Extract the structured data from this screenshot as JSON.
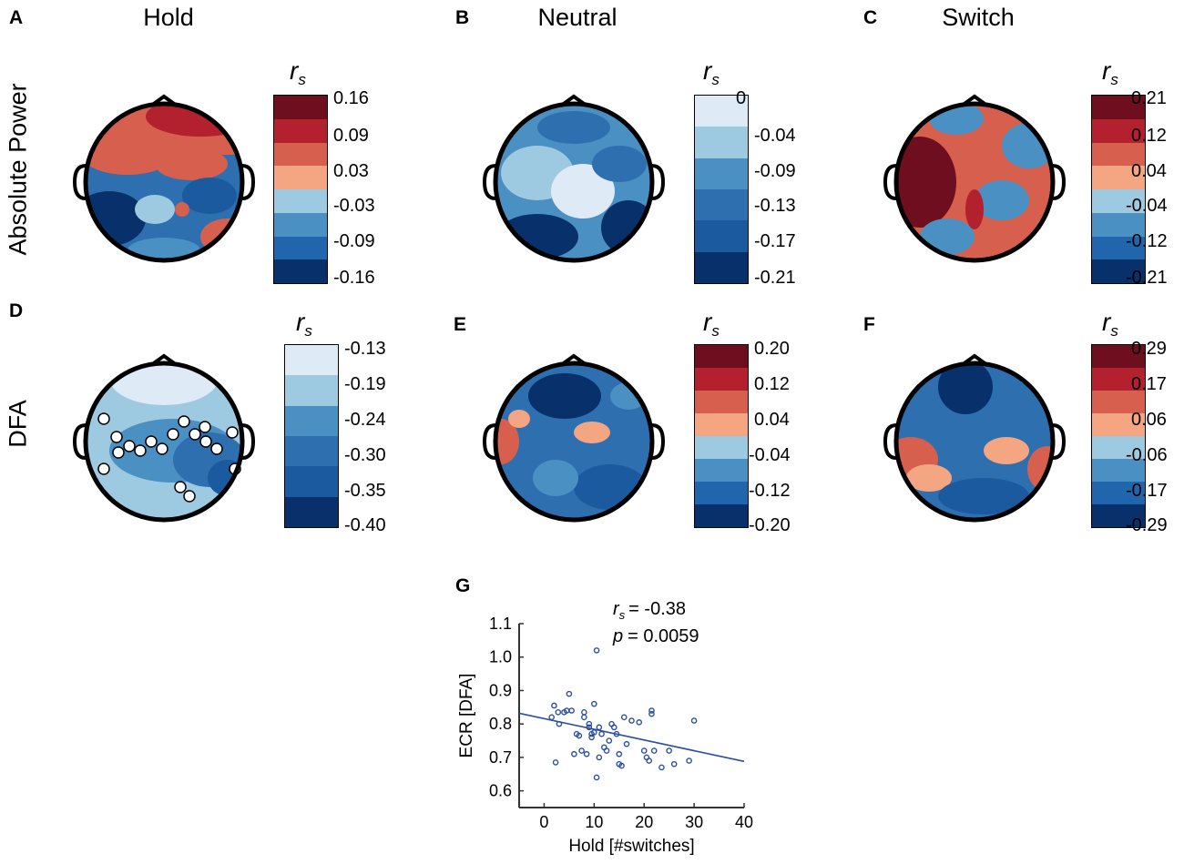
{
  "panel_letters": [
    "A",
    "B",
    "C",
    "D",
    "E",
    "F",
    "G"
  ],
  "column_titles": [
    "Hold",
    "Neutral",
    "Switch"
  ],
  "row_titles": [
    "Absolute Power",
    "DFA"
  ],
  "colorbar_symbol": {
    "main": "r",
    "sub": "s"
  },
  "colors": {
    "diverging": [
      "#6e0e1f",
      "#b3202e",
      "#d6604d",
      "#f4a582",
      "#9ecae1",
      "#4a90c2",
      "#2166ac",
      "#08306b"
    ],
    "blues6": [
      "#deebf7",
      "#9ecae1",
      "#4a90c2",
      "#2e6fb0",
      "#1c5aa0",
      "#08306b"
    ],
    "scatter": "#2c4ea0"
  },
  "colorbars": [
    {
      "panel": "A",
      "ticks": [
        "0.16",
        "0.09",
        "0.03",
        "-0.03",
        "-0.09",
        "-0.16"
      ]
    },
    {
      "panel": "B",
      "ticks": [
        "0",
        "-0.04",
        "-0.09",
        "-0.13",
        "-0.17",
        "-0.21"
      ]
    },
    {
      "panel": "C",
      "ticks": [
        "0.21",
        "0.12",
        "0.04",
        "-0.04",
        "-0.12",
        "-0.21"
      ]
    },
    {
      "panel": "D",
      "ticks": [
        "-0.13",
        "-0.19",
        "-0.24",
        "-0.30",
        "-0.35",
        "-0.40"
      ]
    },
    {
      "panel": "E",
      "ticks": [
        "0.20",
        "0.12",
        "0.04",
        "-0.04",
        "-0.12",
        "-0.20"
      ]
    },
    {
      "panel": "F",
      "ticks": [
        "0.29",
        "0.17",
        "0.06",
        "-0.06",
        "-0.17",
        "-0.29"
      ]
    }
  ],
  "chart_data": {
    "type": "scatter",
    "panel": "G",
    "xlabel": "Hold [#switches]",
    "ylabel": "ECR [DFA]",
    "xlim": [
      -5,
      40
    ],
    "ylim": [
      0.55,
      1.1
    ],
    "xticks": [
      0,
      10,
      20,
      30,
      40
    ],
    "yticks": [
      0.6,
      0.7,
      0.8,
      0.9,
      1.0,
      1.1
    ],
    "xtick_labels": [
      "0",
      "10",
      "20",
      "30",
      "40"
    ],
    "ytick_labels": [
      "0.6",
      "0.7",
      "0.8",
      "0.9",
      "1.0",
      "1.1"
    ],
    "annotation": {
      "rs_label": "r",
      "rs_sub": "s",
      "rs_value": "= -0.38",
      "p_label": "p",
      "p_value": "= 0.0059"
    },
    "fit_line": {
      "x": [
        -5,
        40
      ],
      "y": [
        0.832,
        0.688
      ]
    },
    "points": [
      {
        "x": 1.5,
        "y": 0.82
      },
      {
        "x": 2,
        "y": 0.855
      },
      {
        "x": 2.3,
        "y": 0.685
      },
      {
        "x": 2.8,
        "y": 0.835
      },
      {
        "x": 3,
        "y": 0.8
      },
      {
        "x": 4,
        "y": 0.835
      },
      {
        "x": 4.5,
        "y": 0.84
      },
      {
        "x": 5,
        "y": 0.89
      },
      {
        "x": 5.5,
        "y": 0.84
      },
      {
        "x": 6,
        "y": 0.71
      },
      {
        "x": 6.5,
        "y": 0.77
      },
      {
        "x": 7,
        "y": 0.765
      },
      {
        "x": 7.5,
        "y": 0.72
      },
      {
        "x": 8,
        "y": 0.835
      },
      {
        "x": 8,
        "y": 0.82
      },
      {
        "x": 8.5,
        "y": 0.71
      },
      {
        "x": 9,
        "y": 0.8
      },
      {
        "x": 9,
        "y": 0.79
      },
      {
        "x": 9.5,
        "y": 0.77
      },
      {
        "x": 9.5,
        "y": 0.76
      },
      {
        "x": 10,
        "y": 0.775
      },
      {
        "x": 10,
        "y": 0.86
      },
      {
        "x": 10.5,
        "y": 1.02
      },
      {
        "x": 10.5,
        "y": 0.64
      },
      {
        "x": 11,
        "y": 0.79
      },
      {
        "x": 11,
        "y": 0.7
      },
      {
        "x": 11.5,
        "y": 0.77
      },
      {
        "x": 12,
        "y": 0.73
      },
      {
        "x": 12.5,
        "y": 0.72
      },
      {
        "x": 13,
        "y": 0.75
      },
      {
        "x": 13.5,
        "y": 0.8
      },
      {
        "x": 14,
        "y": 0.79
      },
      {
        "x": 14.5,
        "y": 0.77
      },
      {
        "x": 15,
        "y": 0.71
      },
      {
        "x": 15,
        "y": 0.68
      },
      {
        "x": 15.5,
        "y": 0.675
      },
      {
        "x": 16,
        "y": 0.82
      },
      {
        "x": 16.5,
        "y": 0.74
      },
      {
        "x": 17.5,
        "y": 0.81
      },
      {
        "x": 19,
        "y": 0.805
      },
      {
        "x": 20,
        "y": 0.72
      },
      {
        "x": 20.5,
        "y": 0.7
      },
      {
        "x": 21,
        "y": 0.69
      },
      {
        "x": 21.5,
        "y": 0.84
      },
      {
        "x": 21.5,
        "y": 0.83
      },
      {
        "x": 22,
        "y": 0.72
      },
      {
        "x": 23.5,
        "y": 0.67
      },
      {
        "x": 25,
        "y": 0.72
      },
      {
        "x": 26,
        "y": 0.68
      },
      {
        "x": 29,
        "y": 0.69
      },
      {
        "x": 30,
        "y": 0.81
      }
    ]
  }
}
